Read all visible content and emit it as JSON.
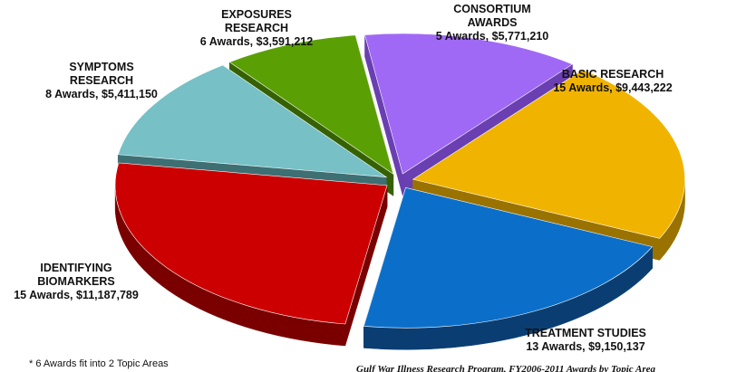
{
  "chart_data": {
    "type": "pie",
    "style": "3d-exploded",
    "slices": [
      {
        "name": "CONSORTIUM AWARDS",
        "label_lines": [
          "CONSORTIUM",
          "AWARDS"
        ],
        "value_text": "5 Awards, $5,771,210",
        "awards": 5,
        "value": 5771210,
        "color": "#9f69f5",
        "side_color": "#6a3fb2"
      },
      {
        "name": "BASIC RESEARCH",
        "label_lines": [
          "BASIC RESEARCH"
        ],
        "value_text": "15 Awards, $9,443,222",
        "awards": 15,
        "value": 9443222,
        "color": "#f0b400",
        "side_color": "#9a7200"
      },
      {
        "name": "TREATMENT STUDIES",
        "label_lines": [
          "TREATMENT STUDIES"
        ],
        "value_text": "13 Awards, $9,150,137",
        "awards": 13,
        "value": 9150137,
        "color": "#0b6fc9",
        "side_color": "#0a3e73"
      },
      {
        "name": "IDENTIFYING BIOMARKERS",
        "label_lines": [
          "IDENTIFYING",
          "BIOMARKERS"
        ],
        "value_text": "15 Awards, $11,187,789",
        "awards": 15,
        "value": 11187789,
        "color": "#cc0000",
        "side_color": "#7a0000"
      },
      {
        "name": "SYMPTOMS RESEARCH",
        "label_lines": [
          "SYMPTOMS",
          "RESEARCH"
        ],
        "value_text": "8 Awards, $5,411,150",
        "awards": 8,
        "value": 5411150,
        "color": "#77c0c6",
        "side_color": "#3d6f73"
      },
      {
        "name": "EXPOSURES RESEARCH",
        "label_lines": [
          "EXPOSURES",
          "RESEARCH"
        ],
        "value_text": "6 Awards, $3,591,212",
        "awards": 6,
        "value": 3591212,
        "color": "#5aa005",
        "side_color": "#356103"
      }
    ],
    "footnote": "* 6 Awards fit into 2 Topic Areas",
    "source_note": "Gulf War Illness Research Program, FY2006-2011 Awards by Topic Area"
  }
}
